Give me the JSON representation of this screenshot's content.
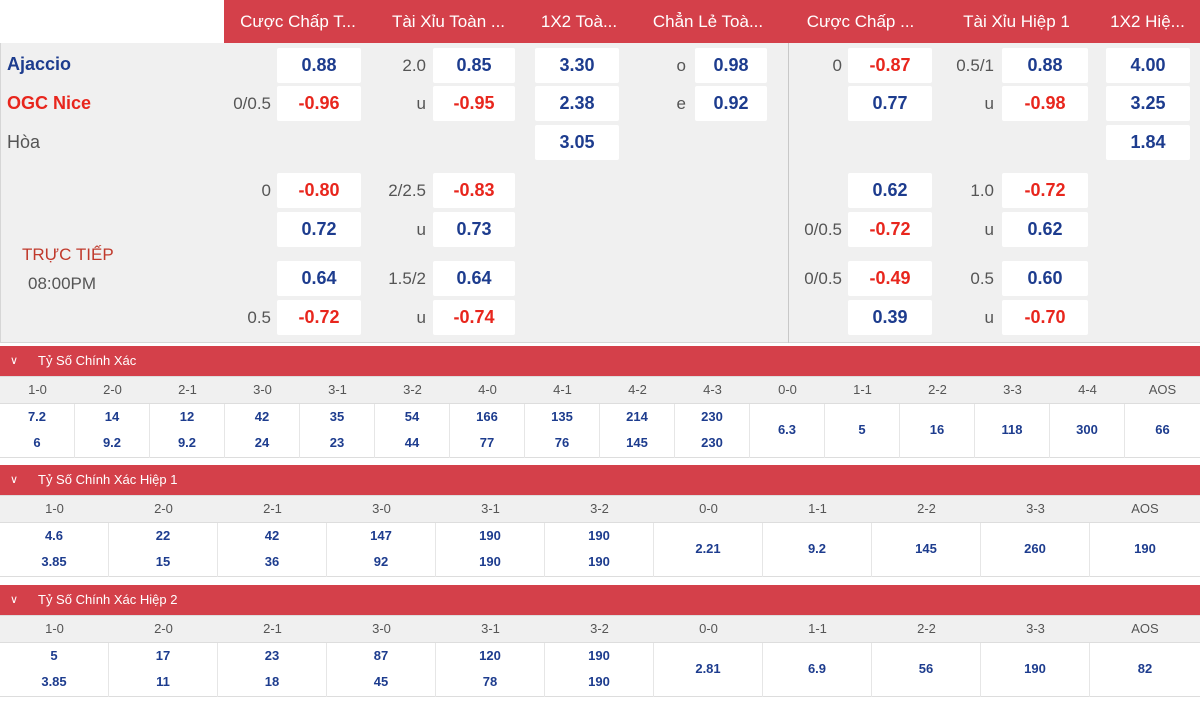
{
  "header": {
    "columns": [
      "Cược Chấp T...",
      "Tài Xỉu Toàn ...",
      "1X2 Toà...",
      "Chẳn Lẻ Toà...",
      "Cược Chấp ...",
      "Tài Xỉu Hiệp 1",
      "1X2 Hiệ..."
    ]
  },
  "match": {
    "home": "Ajaccio",
    "away": "OGC Nice",
    "draw": "Hòa",
    "status": "TRỰC TIẾP",
    "time": "08:00PM"
  },
  "odds": {
    "r1": {
      "ah_val": "0.88",
      "ou_line": "2.0",
      "ou_val": "0.85",
      "x12": "3.30",
      "oe_lbl": "o",
      "oe_val": "0.98",
      "h1ah_line": "0",
      "h1ah_val": "-0.87",
      "h1ou_line": "0.5/1",
      "h1ou_val": "0.88",
      "h1x12": "4.00"
    },
    "r2": {
      "ah_line": "0/0.5",
      "ah_val": "-0.96",
      "ou_lbl": "u",
      "ou_val": "-0.95",
      "x12": "2.38",
      "oe_lbl": "e",
      "oe_val": "0.92",
      "h1ah_val": "0.77",
      "h1ou_lbl": "u",
      "h1ou_val": "-0.98",
      "h1x12": "3.25"
    },
    "r3": {
      "x12": "3.05",
      "h1x12": "1.84"
    },
    "r4": {
      "ah_line": "0",
      "ah_val": "-0.80",
      "ou_line": "2/2.5",
      "ou_val": "-0.83",
      "h1ah_val": "0.62",
      "h1ou_line": "1.0",
      "h1ou_val": "-0.72"
    },
    "r5": {
      "ah_val": "0.72",
      "ou_lbl": "u",
      "ou_val": "0.73",
      "h1ah_line": "0/0.5",
      "h1ah_val": "-0.72",
      "h1ou_lbl": "u",
      "h1ou_val": "0.62"
    },
    "r6": {
      "ah_val": "0.64",
      "ou_line": "1.5/2",
      "ou_val": "0.64",
      "h1ah_line": "0/0.5",
      "h1ah_val": "-0.49",
      "h1ou_line": "0.5",
      "h1ou_val": "0.60"
    },
    "r7": {
      "ah_line": "0.5",
      "ah_val": "-0.72",
      "ou_lbl": "u",
      "ou_val": "-0.74",
      "h1ah_val": "0.39",
      "h1ou_lbl": "u",
      "h1ou_val": "-0.70"
    }
  },
  "sections": [
    {
      "title": "Tỷ Số Chính Xác",
      "labels": [
        "1-0",
        "2-0",
        "2-1",
        "3-0",
        "3-1",
        "3-2",
        "4-0",
        "4-1",
        "4-2",
        "4-3",
        "0-0",
        "1-1",
        "2-2",
        "3-3",
        "4-4",
        "AOS"
      ],
      "top": [
        "7.2",
        "14",
        "12",
        "42",
        "35",
        "54",
        "166",
        "135",
        "214",
        "230"
      ],
      "bottom": [
        "6",
        "9.2",
        "9.2",
        "24",
        "23",
        "44",
        "77",
        "76",
        "145",
        "230"
      ],
      "single": [
        "6.3",
        "5",
        "16",
        "118",
        "300",
        "66"
      ]
    },
    {
      "title": "Tỷ Số Chính Xác Hiệp 1",
      "labels": [
        "1-0",
        "2-0",
        "2-1",
        "3-0",
        "3-1",
        "3-2",
        "0-0",
        "1-1",
        "2-2",
        "3-3",
        "AOS"
      ],
      "top": [
        "4.6",
        "22",
        "42",
        "147",
        "190",
        "190"
      ],
      "bottom": [
        "3.85",
        "15",
        "36",
        "92",
        "190",
        "190"
      ],
      "single": [
        "2.21",
        "9.2",
        "145",
        "260",
        "190"
      ]
    },
    {
      "title": "Tỷ Số Chính Xác Hiệp 2",
      "labels": [
        "1-0",
        "2-0",
        "2-1",
        "3-0",
        "3-1",
        "3-2",
        "0-0",
        "1-1",
        "2-2",
        "3-3",
        "AOS"
      ],
      "top": [
        "5",
        "17",
        "23",
        "87",
        "120",
        "190"
      ],
      "bottom": [
        "3.85",
        "11",
        "18",
        "45",
        "78",
        "190"
      ],
      "single": [
        "2.81",
        "6.9",
        "56",
        "190",
        "82"
      ]
    }
  ],
  "colors": {
    "accent": "#d4404a",
    "positive": "#1d3c8e",
    "negative": "#e8261d",
    "panel": "#f0f0f0"
  },
  "icons": {
    "section_toggle": "chevron-down-icon"
  }
}
